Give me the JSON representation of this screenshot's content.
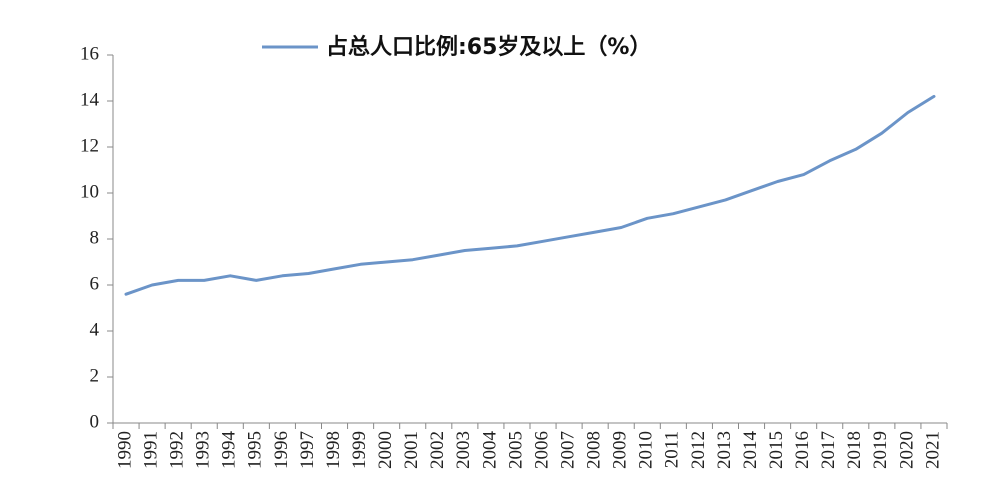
{
  "chart_data": {
    "type": "line",
    "categories": [
      "1990",
      "1991",
      "1992",
      "1993",
      "1994",
      "1995",
      "1996",
      "1997",
      "1998",
      "1999",
      "2000",
      "2001",
      "2002",
      "2003",
      "2004",
      "2005",
      "2006",
      "2007",
      "2008",
      "2009",
      "2010",
      "2011",
      "2012",
      "2013",
      "2014",
      "2015",
      "2016",
      "2017",
      "2018",
      "2019",
      "2020",
      "2021"
    ],
    "series": [
      {
        "name": "占总人口比例:65岁及以上（%）",
        "color": "#6b94c8",
        "values": [
          5.6,
          6.0,
          6.2,
          6.2,
          6.4,
          6.2,
          6.4,
          6.5,
          6.7,
          6.9,
          7.0,
          7.1,
          7.3,
          7.5,
          7.6,
          7.7,
          7.9,
          8.1,
          8.3,
          8.5,
          8.9,
          9.1,
          9.4,
          9.7,
          10.1,
          10.5,
          10.8,
          11.4,
          11.9,
          12.6,
          13.5,
          14.2
        ]
      }
    ],
    "ylim": [
      0,
      16
    ],
    "yticks": [
      0,
      2,
      4,
      6,
      8,
      10,
      12,
      14,
      16
    ],
    "legend": "top",
    "grid": false
  }
}
